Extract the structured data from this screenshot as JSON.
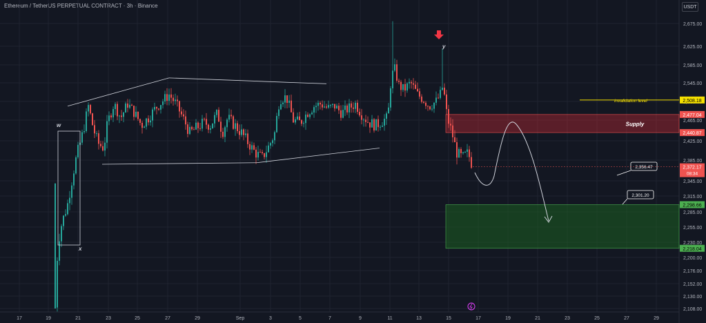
{
  "header": {
    "title": "Ethereum / TetherUS PERPETUAL CONTRACT · 3h · Binance"
  },
  "currency_button": "USDT",
  "colors": {
    "bg": "#131722",
    "up": "#26a69a",
    "down": "#ef5350",
    "grid": "#1f2330",
    "text": "#b2b5be",
    "supply": "#b22833",
    "demand": "#1b5e20",
    "invalidation": "#f5e000"
  },
  "chart_data": {
    "type": "candlestick",
    "symbol": "Ethereum / TetherUS PERPETUAL CONTRACT",
    "interval": "3h",
    "exchange": "Binance",
    "y_axis": {
      "min": 2100,
      "max": 2690,
      "ticks": [
        "2,675.00",
        "2,625.00",
        "2,585.00",
        "2,545.00",
        "2,505.00",
        "2,465.00",
        "2,425.00",
        "2,385.00",
        "2,345.00",
        "2,315.00",
        "2,285.00",
        "2,255.00",
        "2,230.00",
        "2,200.00",
        "2,176.00",
        "2,152.00",
        "2,130.00",
        "2,108.00"
      ]
    },
    "x_axis": {
      "ticks": [
        "17",
        "19",
        "21",
        "23",
        "25",
        "27",
        "29",
        "Sep",
        "3",
        "5",
        "7",
        "9",
        "11",
        "13",
        "15",
        "17",
        "19",
        "21",
        "23",
        "25",
        "27",
        "29"
      ]
    },
    "price_labels": [
      {
        "value": "2,508.18",
        "kind": "invalidation"
      },
      {
        "value": "2,477.04",
        "kind": "supply"
      },
      {
        "value": "2,440.87",
        "kind": "supply"
      },
      {
        "value": "2,372.17",
        "kind": "current",
        "countdown": "08:34"
      },
      {
        "value": "2,298.66",
        "kind": "demand"
      },
      {
        "value": "2,218.04",
        "kind": "demand"
      }
    ],
    "annotations": {
      "invalidation": "invalidation level",
      "supply": "Supply",
      "callout1": "2,356.47",
      "callout2": "2,301.20",
      "letters": [
        "w",
        "x",
        "y"
      ]
    },
    "key_points": [
      {
        "date": "Aug 19",
        "low": 2108
      },
      {
        "date": "Aug 21",
        "close": 2545
      },
      {
        "date": "Sep 11",
        "high": 2680
      },
      {
        "date": "Sep 14",
        "high": 2620
      },
      {
        "date": "Sep 16",
        "close": 2372.17
      }
    ],
    "projection": [
      {
        "date": "Sep 17",
        "value": 2340
      },
      {
        "date": "Sep 19",
        "value": 2455
      },
      {
        "date": "Sep 21",
        "value": 2270
      }
    ]
  }
}
